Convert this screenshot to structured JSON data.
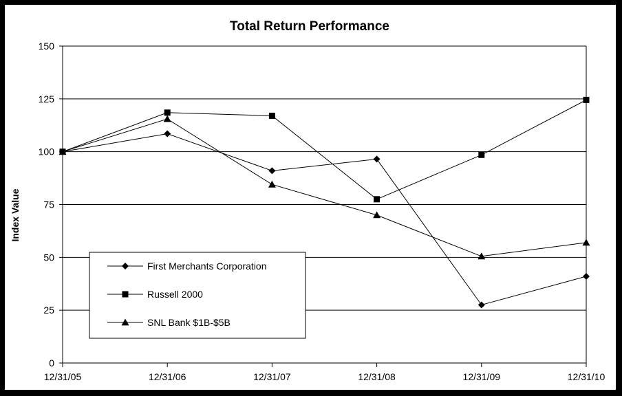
{
  "chart_data": {
    "type": "line",
    "title": "Total Return Performance",
    "xlabel": "",
    "ylabel": "Index Value",
    "categories": [
      "12/31/05",
      "12/31/06",
      "12/31/07",
      "12/31/08",
      "12/31/09",
      "12/31/10"
    ],
    "ylim": [
      0,
      150
    ],
    "yticks": [
      0,
      25,
      50,
      75,
      100,
      125,
      150
    ],
    "ytick_labels": [
      "0",
      "25",
      "50",
      "75",
      "100",
      "125",
      "150"
    ],
    "grid": "horizontal",
    "legend_position": "lower-left",
    "series": [
      {
        "name": "First Merchants Corporation",
        "marker": "diamond",
        "values": [
          100,
          108.5,
          91,
          96.5,
          27.5,
          41
        ]
      },
      {
        "name": "Russell 2000",
        "marker": "square",
        "values": [
          100,
          118.5,
          117,
          77.5,
          98.5,
          124.5
        ]
      },
      {
        "name": "SNL Bank $1B-$5B",
        "marker": "triangle",
        "values": [
          100,
          115.5,
          84.5,
          70,
          50.5,
          57
        ]
      }
    ]
  }
}
